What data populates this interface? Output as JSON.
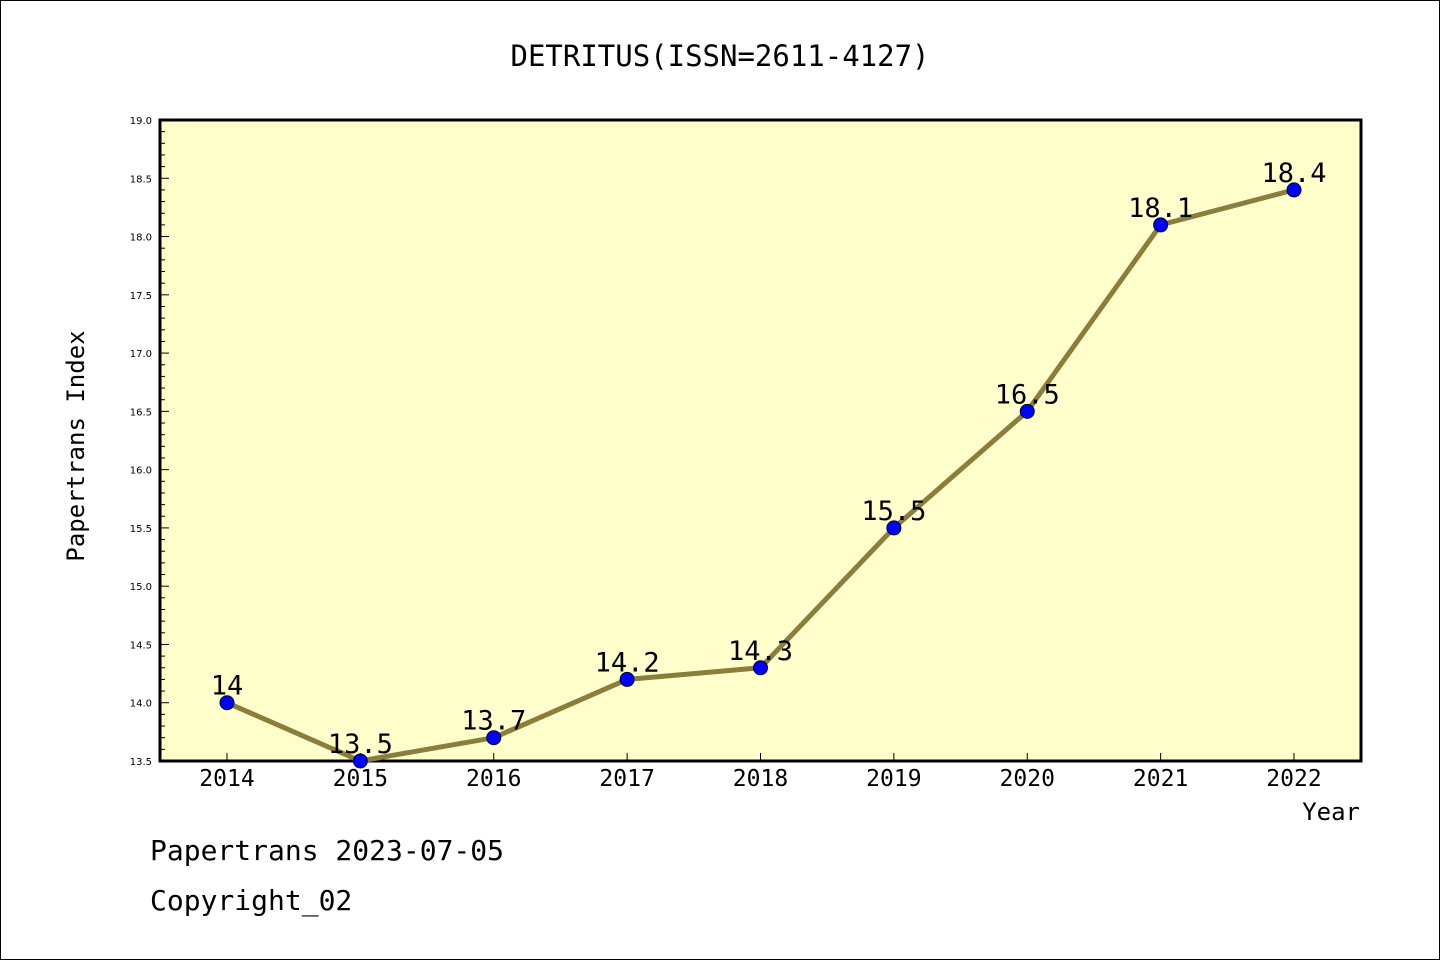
{
  "chart_data": {
    "type": "line",
    "title": "DETRITUS(ISSN=2611-4127)",
    "xlabel": "Year",
    "ylabel": "Papertrans Index",
    "categories": [
      "2014",
      "2015",
      "2016",
      "2017",
      "2018",
      "2019",
      "2020",
      "2021",
      "2022"
    ],
    "values": [
      14,
      13.5,
      13.7,
      14.2,
      14.3,
      15.5,
      16.5,
      18.1,
      18.4
    ],
    "data_labels": [
      "14",
      "13.5",
      "13.7",
      "14.2",
      "14.3",
      "15.5",
      "16.5",
      "18.1",
      "18.4"
    ],
    "ylim": [
      13.5,
      19.0
    ],
    "yticks": [
      "13.5",
      "14.0",
      "14.5",
      "15.0",
      "15.5",
      "16.0",
      "16.5",
      "17.0",
      "17.5",
      "18.0",
      "18.5",
      "19.0"
    ],
    "grid": false,
    "colors": {
      "plot_background": "#ffffcc",
      "line": "#8b7d3a",
      "marker": "#0000ff"
    }
  },
  "footer": {
    "line1": "Papertrans 2023-07-05",
    "line2": "Copyright_02"
  }
}
